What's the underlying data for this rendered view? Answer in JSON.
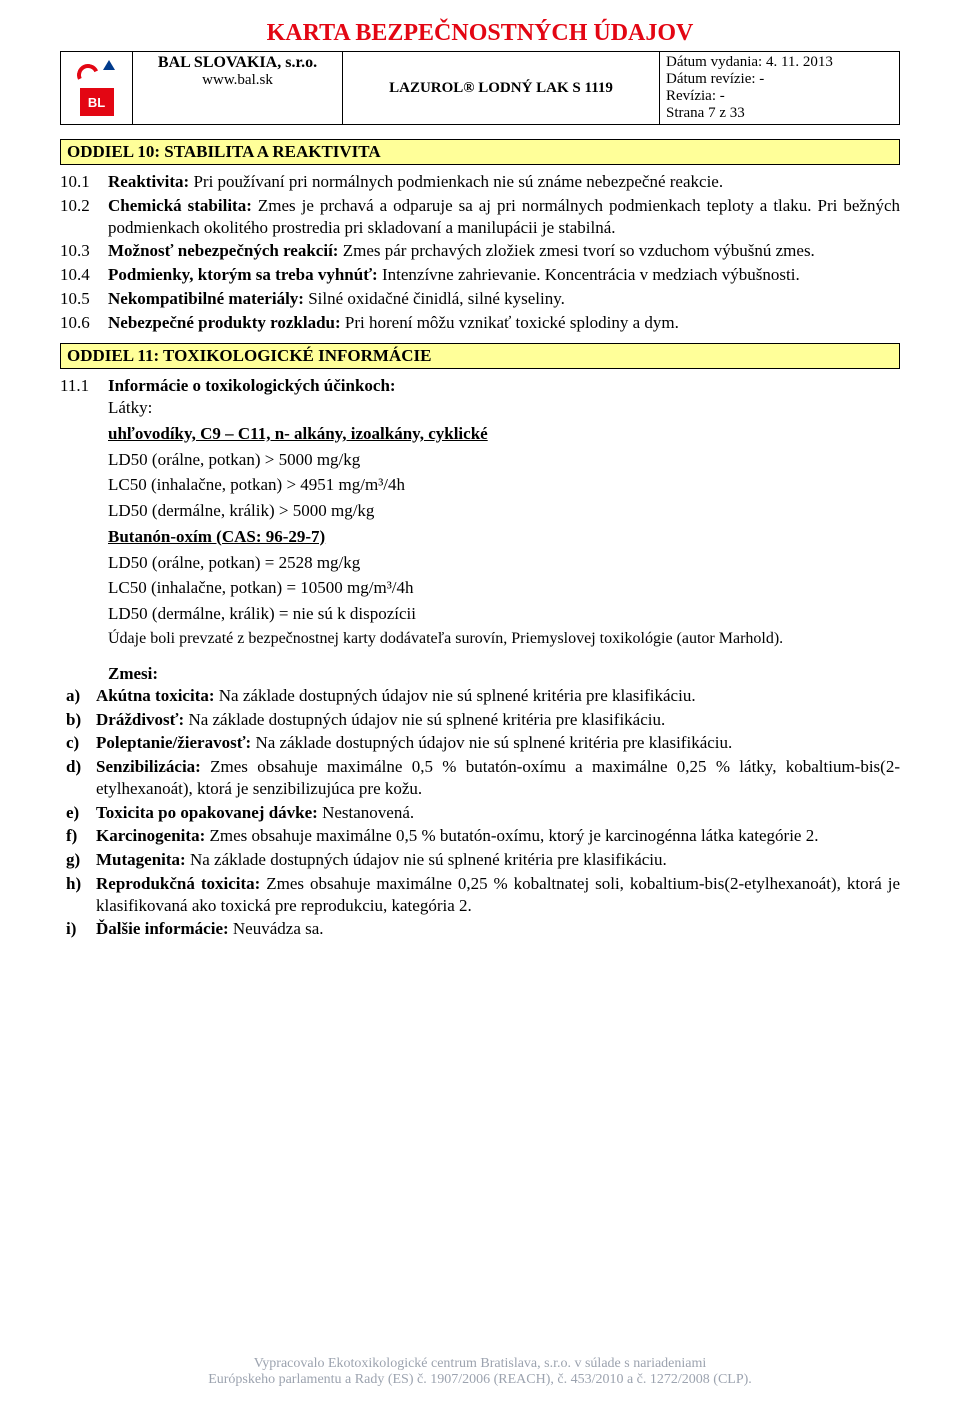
{
  "page": {
    "title": "KARTA BEZPEČNOSTNÝCH ÚDAJOV",
    "title_color": "#e30613",
    "background_color": "#ffffff"
  },
  "header": {
    "logo_text": "BL",
    "company_line1": "BAL SLOVAKIA, s.r.o.",
    "company_line2": "www.bal.sk",
    "product": "LAZUROL® LODNÝ LAK  S 1119",
    "meta": {
      "issue_label": "Dátum vydania: ",
      "issue_value": "4. 11. 2013",
      "revision_label": "Dátum revízie: ",
      "revision_value": "-",
      "rev_no_label": "Revízia: ",
      "rev_no_value": "-",
      "page_label": "Strana ",
      "page_value": "7 z 33"
    }
  },
  "section10": {
    "bar": "ODDIEL 10: STABILITA A REAKTIVITA",
    "bar_bg": "#ffff99",
    "items": [
      {
        "num": "10.1",
        "label": "Reaktivita:",
        "text": " Pri používaní pri normálnych podmienkach nie sú známe nebezpečné reakcie."
      },
      {
        "num": "10.2",
        "label": "Chemická stabilita:",
        "text": " Zmes je prchavá a odparuje sa aj pri normálnych podmienkach teploty a tlaku. Pri bežných podmienkach okolitého prostredia pri skladovaní a manilupácii je stabilná."
      },
      {
        "num": "10.3",
        "label": "Možnosť nebezpečných reakcií:",
        "text": " Zmes pár prchavých zložiek zmesi tvorí so vzduchom výbušnú zmes."
      },
      {
        "num": "10.4",
        "label": "Podmienky, ktorým sa treba vyhnúť:",
        "text": " Intenzívne zahrievanie. Koncentrácia v medziach výbušnosti."
      },
      {
        "num": "10.5",
        "label": "Nekompatibilné materiály:",
        "text": " Silné oxidačné činidlá, silné kyseliny."
      },
      {
        "num": "10.6",
        "label": "Nebezpečné produkty rozkladu:",
        "text": " Pri horení môžu vznikať toxické splodiny a dym."
      }
    ]
  },
  "section11": {
    "bar": "ODDIEL 11: TOXIKOLOGICKÉ INFORMÁCIE",
    "bar_bg": "#ffff99",
    "head_num": "11.1",
    "head_label": "Informácie o toxikologických účinkoch:",
    "latky": "Látky:",
    "sub1_title": "uhľovodíky,  C9 – C11, n- alkány, izoalkány, cyklické",
    "tox_lines_1": [
      "LD50 (orálne, potkan) > 5000 mg/kg",
      "LC50 (inhalačne, potkan) > 4951 mg/m³/4h",
      "LD50 (dermálne, králik) > 5000 mg/kg"
    ],
    "sub2_title": "Butanón-oxím (CAS: 96-29-7)",
    "tox_lines_2": [
      "LD50 (orálne, potkan) = 2528 mg/kg",
      "LC50 (inhalačne, potkan) = 10500 mg/m³/4h",
      "LD50 (dermálne, králik) = nie sú k dispozícii"
    ],
    "source_note": "Údaje boli prevzaté z bezpečnostnej karty dodávateľa surovín, Priemyslovej toxikológie (autor Marhold).",
    "zmesi": "Zmesi:",
    "letters": [
      {
        "l": "a)",
        "label": "Akútna toxicita:",
        "text": " Na základe dostupných údajov nie sú splnené kritéria pre klasifikáciu."
      },
      {
        "l": "b)",
        "label": "Dráždivosť:",
        "text": " Na základe dostupných údajov nie sú splnené kritéria pre klasifikáciu."
      },
      {
        "l": "c)",
        "label": "Poleptanie/žieravosť:",
        "text": " Na základe dostupných údajov nie sú splnené kritéria pre klasifikáciu."
      },
      {
        "l": "d)",
        "label": "Senzibilizácia:",
        "text": " Zmes obsahuje maximálne 0,5 % butatón-oxímu a maximálne 0,25 % látky, kobaltium-bis(2-etylhexanoát), ktorá je senzibilizujúca pre kožu."
      },
      {
        "l": "e)",
        "label": "Toxicita po opakovanej dávke:",
        "text": " Nestanovená."
      },
      {
        "l": "f)",
        "label": "Karcinogenita:",
        "text": " Zmes obsahuje maximálne 0,5 % butatón-oxímu, ktorý je karcinogénna látka kategórie 2."
      },
      {
        "l": "g)",
        "label": "Mutagenita:",
        "text": " Na základe dostupných údajov nie sú splnené kritéria pre klasifikáciu."
      },
      {
        "l": "h)",
        "label": "Reprodukčná toxicita:",
        "text": " Zmes obsahuje maximálne 0,25 % kobaltnatej soli, kobaltium-bis(2-etylhexanoát), ktorá je klasifikovaná ako toxická pre reprodukciu, kategória 2."
      },
      {
        "l": "i)",
        "label": "Ďalšie informácie:",
        "text": " Neuvádza sa."
      }
    ]
  },
  "footer": {
    "line1": "Vypracovalo Ekotoxikologické centrum Bratislava, s.r.o. v súlade s nariadeniami",
    "line2": "Európskeho parlamentu a Rady (ES) č. 1907/2006 (REACH), č. 453/2010 a č. 1272/2008 (CLP).",
    "color": "#9ca3af"
  }
}
